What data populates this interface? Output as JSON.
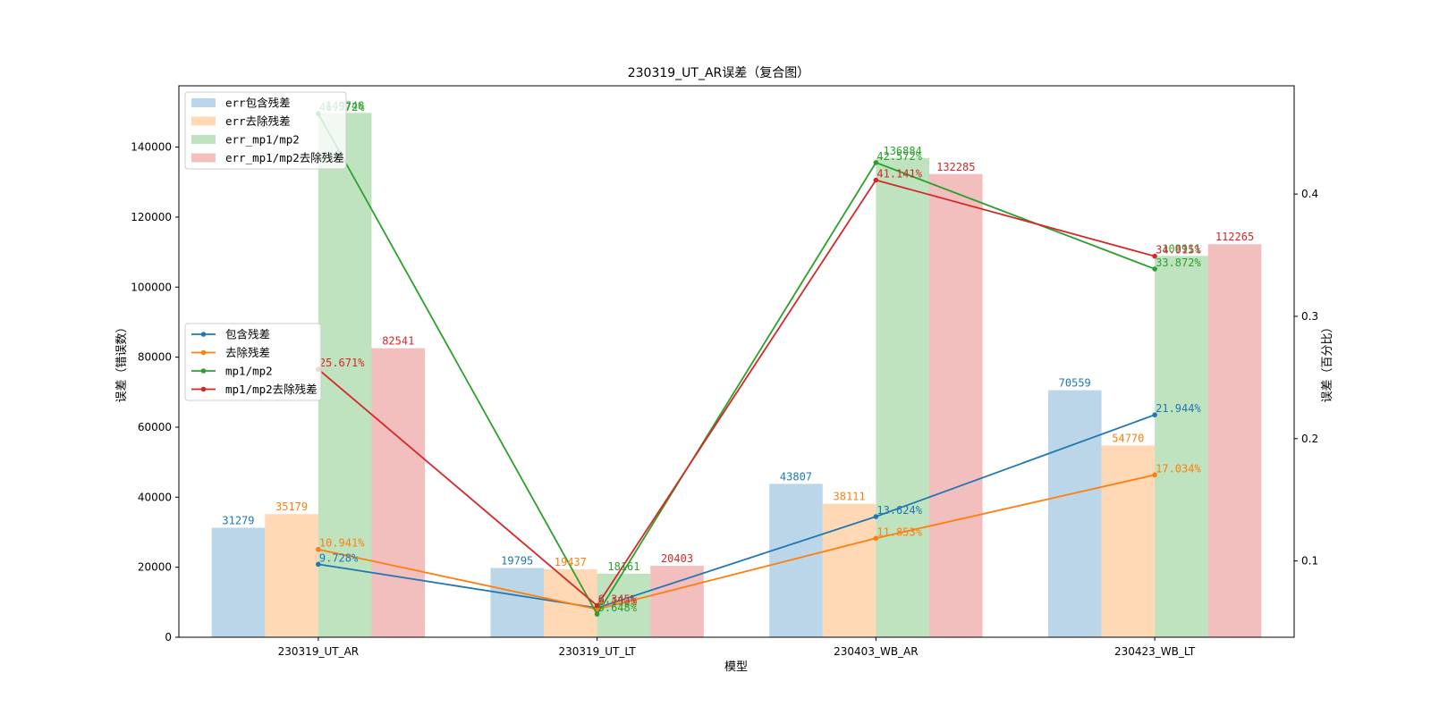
{
  "chart_data": {
    "type": "bar",
    "title": "230319_UT_AR误差（复合图）",
    "xlabel": "模型",
    "ylabel": "误差（错误数）",
    "ylabel_right": "误差（百分比）",
    "categories": [
      "230319_UT_AR",
      "230319_UT_LT",
      "230403_WB_AR",
      "230423_WB_LT"
    ],
    "ylim": [
      0,
      157500
    ],
    "y_ticks": [
      0,
      20000,
      40000,
      60000,
      80000,
      100000,
      120000,
      140000
    ],
    "y2lim": [
      0.0376,
      0.4885
    ],
    "y2_ticks": [
      0.1,
      0.2,
      0.3,
      0.4
    ],
    "bar_series": [
      {
        "name": "err包含残差",
        "color": "#1f77b4",
        "values": [
          31279,
          19795,
          43807,
          70559
        ]
      },
      {
        "name": "err去除残差",
        "color": "#ff7f0e",
        "values": [
          35179,
          19437,
          38111,
          54770
        ]
      },
      {
        "name": "err_mp1/mp2",
        "color": "#2ca02c",
        "values": [
          149748,
          18161,
          136884,
          108911
        ]
      },
      {
        "name": "err_mp1/mp2去除残差",
        "color": "#d62728",
        "values": [
          82541,
          20403,
          132285,
          112265
        ]
      }
    ],
    "line_series": [
      {
        "name": "包含残差",
        "color": "#1f77b4",
        "values": [
          0.09728,
          0.06156,
          0.13624,
          0.21944
        ],
        "labels": [
          "9.728%",
          "6.156%",
          "13.624%",
          "21.944%"
        ]
      },
      {
        "name": "去除残差",
        "color": "#ff7f0e",
        "values": [
          0.10941,
          0.06045,
          0.11853,
          0.17034
        ],
        "labels": [
          "10.941%",
          "6.045%",
          "11.853%",
          "17.034%"
        ]
      },
      {
        "name": "mp1/mp2",
        "color": "#2ca02c",
        "values": [
          0.46572,
          0.05648,
          0.42572,
          0.33872
        ],
        "labels": [
          "46.572%",
          "5.648%",
          "42.572%",
          "33.872%"
        ]
      },
      {
        "name": "mp1/mp2去除残差",
        "color": "#d62728",
        "values": [
          0.25671,
          0.06345,
          0.41141,
          0.34915
        ],
        "labels": [
          "25.671%",
          "6.345%",
          "41.141%",
          "34.915%"
        ]
      }
    ],
    "legend_bars_position": "upper-left",
    "legend_lines_position": "center-left",
    "grid": false
  }
}
